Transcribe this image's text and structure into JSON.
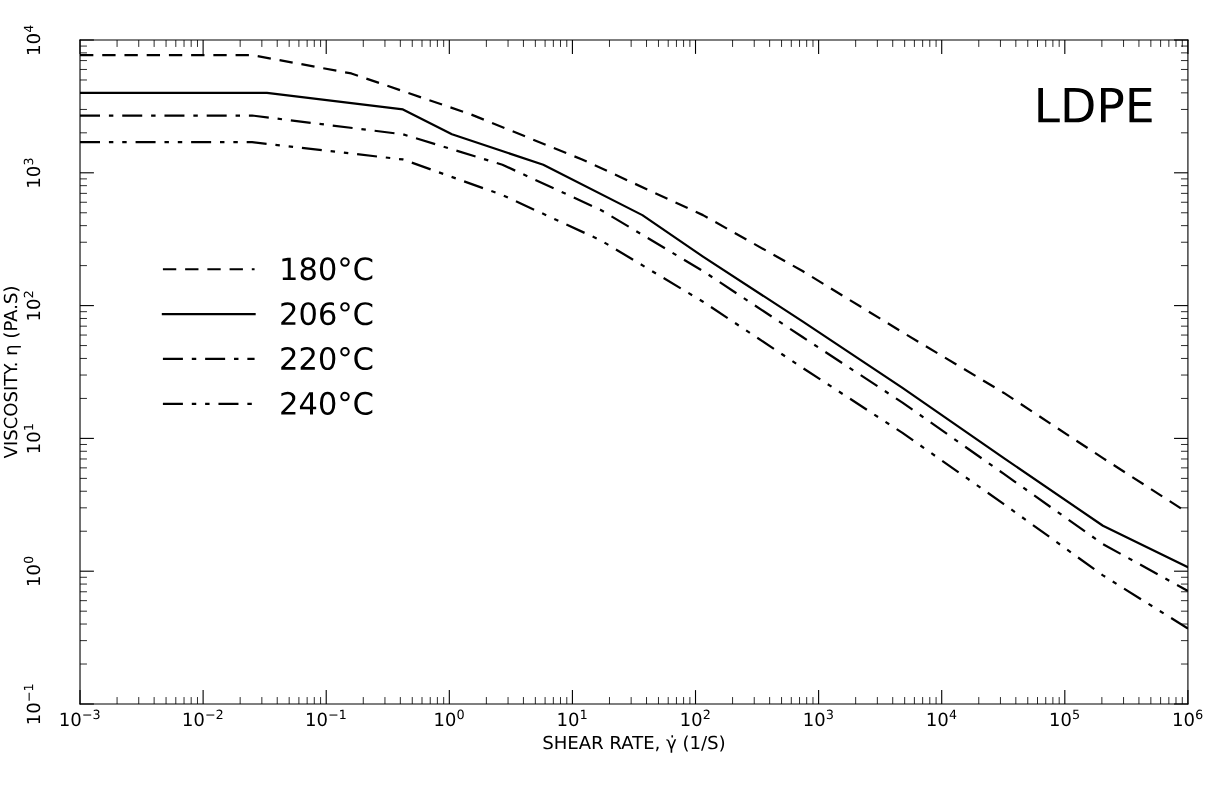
{
  "chart_data": {
    "type": "line",
    "xlabel": "SHEAR RATE, γ̇ (1/S)",
    "ylabel": "VISCOSITY. η (PA.S)",
    "annotations": [
      "LDPE"
    ],
    "log": "xy",
    "grid": false,
    "legend": "left",
    "marker": "none",
    "xlim": [
      0.001,
      1000000
    ],
    "ylim": [
      0.1,
      10000
    ],
    "xticks": [
      {
        "value": 0.001,
        "label": "10$^{−3}$"
      },
      {
        "value": 0.01,
        "label": "10$^{−2}$"
      },
      {
        "value": 0.1,
        "label": "10$^{−1}$"
      },
      {
        "value": 1,
        "label": "10$^{0}$"
      },
      {
        "value": 10,
        "label": "10$^{1}$"
      },
      {
        "value": 100,
        "label": "10$^{2}$"
      },
      {
        "value": 1000,
        "label": "10$^{3}$"
      },
      {
        "value": 10000,
        "label": "10$^{4}$"
      },
      {
        "value": 100000,
        "label": "10$^{5}$"
      },
      {
        "value": 1000000,
        "label": "10$^{6}$"
      }
    ],
    "yticks": [
      {
        "value": 0.1,
        "label": "10$^{−1}$"
      },
      {
        "value": 1,
        "label": "10$^{0}$"
      },
      {
        "value": 10,
        "label": "10$^{1}$"
      },
      {
        "value": 100,
        "label": "10$^{2}$"
      },
      {
        "value": 1000,
        "label": "10$^{3}$"
      },
      {
        "value": 10000,
        "label": "10$^{4}$"
      }
    ],
    "series": [
      {
        "name": "180°C",
        "color": "#000000",
        "line_style": "dashed",
        "x": [
          0.001,
          0.025,
          0.16,
          1.5,
          12,
          115,
          740,
          4800,
          32000,
          204000,
          1000000
        ],
        "values": [
          7700,
          7700,
          5600,
          2750,
          1260,
          480,
          182,
          63,
          22,
          7.1,
          2.75
        ]
      },
      {
        "name": "206°C",
        "color": "#000000",
        "line_style": "solid",
        "x": [
          0.001,
          0.033,
          0.42,
          1.05,
          5.8,
          37,
          115,
          740,
          4800,
          32000,
          204000,
          1000000
        ],
        "values": [
          4000,
          4000,
          3000,
          1950,
          1150,
          480,
          234,
          76,
          24,
          7.1,
          2.2,
          1.07
        ]
      },
      {
        "name": "220°C",
        "color": "#000000",
        "line_style": "dashdot",
        "x": [
          0.001,
          0.025,
          0.42,
          2.7,
          17,
          115,
          740,
          4800,
          32000,
          204000,
          1000000
        ],
        "values": [
          2700,
          2700,
          1950,
          1150,
          525,
          182,
          58,
          18.6,
          5.4,
          1.6,
          0.71
        ]
      },
      {
        "name": "240°C",
        "color": "#000000",
        "line_style": "dashdotdot",
        "x": [
          0.001,
          0.025,
          0.42,
          2.7,
          17,
          115,
          740,
          4800,
          32000,
          204000,
          1000000
        ],
        "values": [
          1700,
          1700,
          1260,
          680,
          310,
          107,
          34,
          11,
          3.2,
          0.93,
          0.37
        ]
      }
    ]
  }
}
